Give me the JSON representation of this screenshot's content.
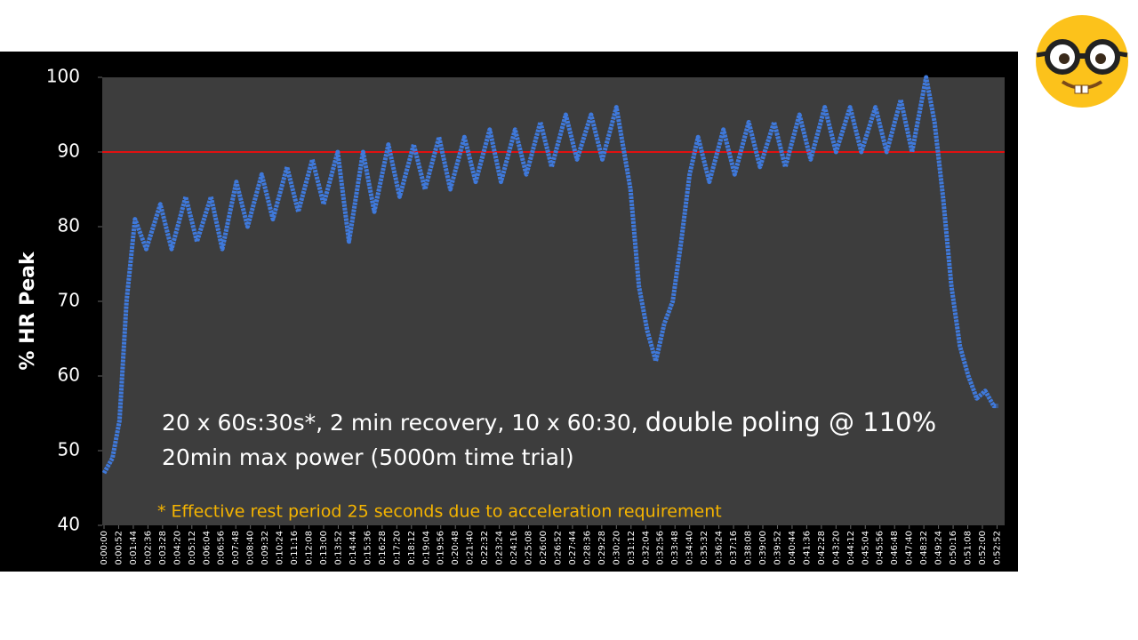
{
  "chart_data": {
    "type": "line",
    "ylabel": "% HR Peak",
    "annotation": "20 x 60s:30s*, 2 min recovery, 10 x 60:30,",
    "annotation_emphasis": "double poling @ 110%",
    "annotation_line2": "20min max power (5000m time trial)",
    "footnote": "* Effective rest period 25 seconds due to acceleration requirement",
    "reference_line": 90,
    "reference_color": "#e01010",
    "x": [
      0,
      30,
      55,
      80,
      110,
      150,
      200,
      240,
      290,
      330,
      380,
      420,
      470,
      510,
      560,
      600,
      650,
      690,
      740,
      780,
      830,
      870,
      920,
      960,
      1010,
      1050,
      1100,
      1140,
      1190,
      1230,
      1280,
      1320,
      1370,
      1410,
      1460,
      1500,
      1550,
      1590,
      1640,
      1680,
      1730,
      1770,
      1820,
      1870,
      1900,
      1930,
      1960,
      1990,
      2020,
      2050,
      2080,
      2110,
      2150,
      2200,
      2240,
      2290,
      2330,
      2380,
      2420,
      2470,
      2510,
      2560,
      2600,
      2650,
      2690,
      2740,
      2780,
      2830,
      2870,
      2920,
      2950,
      2980,
      3010,
      3040,
      3070,
      3100,
      3130,
      3160,
      3175
    ],
    "series": [
      {
        "color": "#3f79db",
        "values": [
          47,
          49,
          54,
          70,
          81,
          77,
          83,
          77,
          84,
          78,
          84,
          77,
          86,
          80,
          87,
          81,
          88,
          82,
          89,
          83,
          90,
          78,
          90,
          82,
          91,
          84,
          91,
          85,
          92,
          85,
          92,
          86,
          93,
          86,
          93,
          87,
          94,
          88,
          95,
          89,
          95,
          89,
          96,
          85,
          72,
          66,
          62,
          67,
          70,
          78,
          87,
          92,
          86,
          93,
          87,
          94,
          88,
          94,
          88,
          95,
          89,
          96,
          90,
          96,
          90,
          96,
          90,
          97,
          90,
          100,
          94,
          84,
          72,
          64,
          60,
          57,
          58,
          56,
          56
        ]
      }
    ],
    "xlim": [
      0,
      3180
    ],
    "ylim": [
      40,
      100
    ],
    "yticks": [
      40,
      50,
      60,
      70,
      80,
      90,
      100
    ],
    "xticks": [
      {
        "value": 0,
        "label": "0:00:00"
      },
      {
        "value": 52,
        "label": "0:00:52"
      },
      {
        "value": 104,
        "label": "0:01:44"
      },
      {
        "value": 156,
        "label": "0:02:36"
      },
      {
        "value": 208,
        "label": "0:03:28"
      },
      {
        "value": 260,
        "label": "0:04:20"
      },
      {
        "value": 312,
        "label": "0:05:12"
      },
      {
        "value": 364,
        "label": "0:06:04"
      },
      {
        "value": 416,
        "label": "0:06:56"
      },
      {
        "value": 468,
        "label": "0:07:48"
      },
      {
        "value": 520,
        "label": "0:08:40"
      },
      {
        "value": 572,
        "label": "0:09:32"
      },
      {
        "value": 624,
        "label": "0:10:24"
      },
      {
        "value": 676,
        "label": "0:11:16"
      },
      {
        "value": 728,
        "label": "0:12:08"
      },
      {
        "value": 780,
        "label": "0:13:00"
      },
      {
        "value": 832,
        "label": "0:13:52"
      },
      {
        "value": 884,
        "label": "0:14:44"
      },
      {
        "value": 936,
        "label": "0:15:36"
      },
      {
        "value": 988,
        "label": "0:16:28"
      },
      {
        "value": 1040,
        "label": "0:17:20"
      },
      {
        "value": 1092,
        "label": "0:18:12"
      },
      {
        "value": 1144,
        "label": "0:19:04"
      },
      {
        "value": 1196,
        "label": "0:19:56"
      },
      {
        "value": 1248,
        "label": "0:20:48"
      },
      {
        "value": 1300,
        "label": "0:21:40"
      },
      {
        "value": 1352,
        "label": "0:22:32"
      },
      {
        "value": 1404,
        "label": "0:23:24"
      },
      {
        "value": 1456,
        "label": "0:24:16"
      },
      {
        "value": 1508,
        "label": "0:25:08"
      },
      {
        "value": 1560,
        "label": "0:26:00"
      },
      {
        "value": 1612,
        "label": "0:26:52"
      },
      {
        "value": 1664,
        "label": "0:27:44"
      },
      {
        "value": 1716,
        "label": "0:28:36"
      },
      {
        "value": 1768,
        "label": "0:29:28"
      },
      {
        "value": 1820,
        "label": "0:30:20"
      },
      {
        "value": 1872,
        "label": "0:31:12"
      },
      {
        "value": 1924,
        "label": "0:32:04"
      },
      {
        "value": 1976,
        "label": "0:32:56"
      },
      {
        "value": 2028,
        "label": "0:33:48"
      },
      {
        "value": 2080,
        "label": "0:34:40"
      },
      {
        "value": 2132,
        "label": "0:35:32"
      },
      {
        "value": 2184,
        "label": "0:36:24"
      },
      {
        "value": 2236,
        "label": "0:37:16"
      },
      {
        "value": 2288,
        "label": "0:38:08"
      },
      {
        "value": 2340,
        "label": "0:39:00"
      },
      {
        "value": 2392,
        "label": "0:39:52"
      },
      {
        "value": 2444,
        "label": "0:40:44"
      },
      {
        "value": 2496,
        "label": "0:41:36"
      },
      {
        "value": 2548,
        "label": "0:42:28"
      },
      {
        "value": 2600,
        "label": "0:43:20"
      },
      {
        "value": 2652,
        "label": "0:44:12"
      },
      {
        "value": 2704,
        "label": "0:45:04"
      },
      {
        "value": 2756,
        "label": "0:45:56"
      },
      {
        "value": 2808,
        "label": "0:46:48"
      },
      {
        "value": 2860,
        "label": "0:47:40"
      },
      {
        "value": 2912,
        "label": "0:48:32"
      },
      {
        "value": 2964,
        "label": "0:49:24"
      },
      {
        "value": 3016,
        "label": "0:50:16"
      },
      {
        "value": 3068,
        "label": "0:51:08"
      },
      {
        "value": 3120,
        "label": "0:52:00"
      },
      {
        "value": 3172,
        "label": "0:52:52"
      }
    ]
  }
}
